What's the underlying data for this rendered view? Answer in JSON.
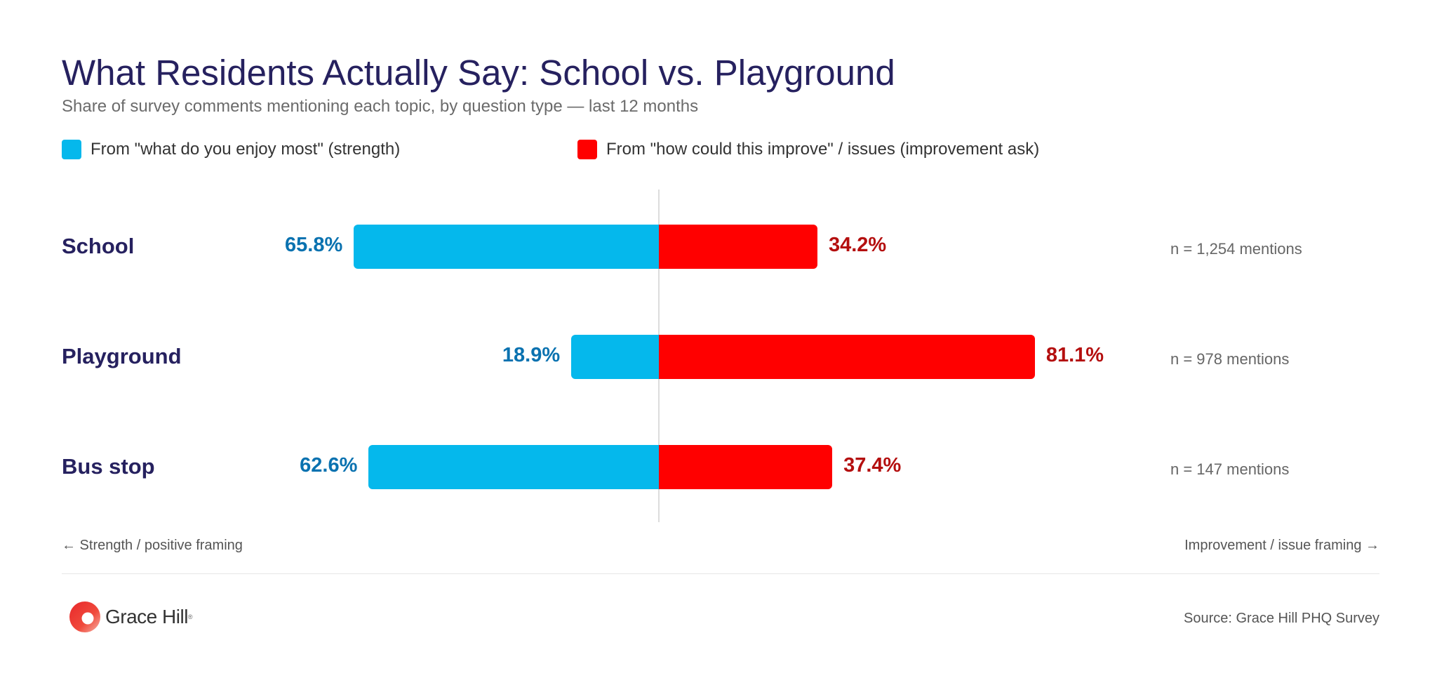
{
  "title": "What Residents Actually Say: School vs. Playground",
  "subtitle": "Share of survey comments mentioning each topic, by question type — last 12 months",
  "legend": {
    "strength": "From \"what do you enjoy most\" (strength)",
    "improvement": "From \"how could this improve\" / issues (improvement ask)"
  },
  "colors": {
    "strength_bar": "#05b8ec",
    "improvement_bar": "#ff0000",
    "strength_label": "#0a72b0",
    "improvement_label": "#b40f0f",
    "title": "#26215f"
  },
  "chart_data": {
    "type": "bar",
    "orientation": "horizontal-diverging",
    "categories": [
      "School",
      "Playground",
      "Bus stop"
    ],
    "series": [
      {
        "name": "From \"what do you enjoy most\" (strength)",
        "values": [
          65.8,
          18.9,
          62.6
        ],
        "labels": [
          "65.8%",
          "18.9%",
          "62.6%"
        ]
      },
      {
        "name": "From \"how could this improve\" / issues (improvement ask)",
        "values": [
          34.2,
          81.1,
          37.4
        ],
        "labels": [
          "34.2%",
          "81.1%",
          "37.4%"
        ]
      }
    ],
    "mentions": [
      "n = 1,254 mentions",
      "n = 978 mentions",
      "n = 147 mentions"
    ],
    "xlim": [
      0,
      100
    ],
    "legend_position": "top-left"
  },
  "axis_notes": {
    "left": "← Strength / positive framing",
    "right": "Improvement / issue framing →"
  },
  "footer": {
    "brand": "Grace Hill",
    "source": "Source: Grace Hill PHQ Survey"
  }
}
